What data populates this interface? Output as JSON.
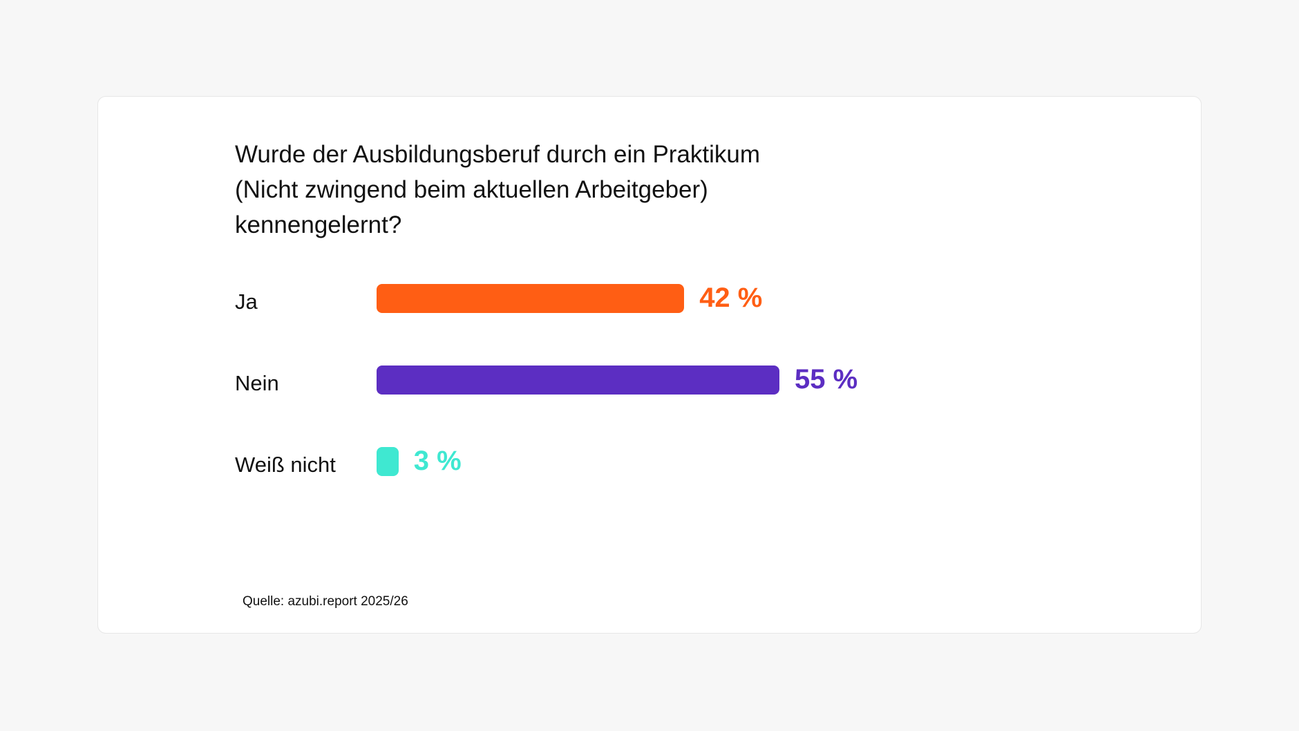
{
  "chart_data": {
    "type": "bar",
    "orientation": "horizontal",
    "title": "Wurde der Ausbildungsberuf durch ein Praktikum\n(Nicht zwingend beim aktuellen Arbeitgeber)\nkennengelernt?",
    "categories": [
      "Ja",
      "Nein",
      "Weiß nicht"
    ],
    "values": [
      42,
      55,
      3
    ],
    "value_labels": [
      "42 %",
      "55 %",
      "3 %"
    ],
    "colors": [
      "#ff5e14",
      "#5c2ec2",
      "#3fe8d1"
    ],
    "unit": "%",
    "grid": false,
    "legend": "none"
  },
  "source": "Quelle: azubi.report 2025/26"
}
